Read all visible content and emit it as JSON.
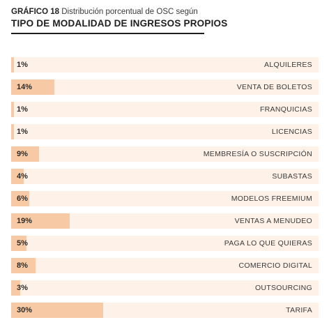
{
  "header": {
    "tag": "GRÁFICO 18",
    "subtitle": "Distribución porcentual de OSC según",
    "title": "TIPO DE MODALIDAD DE INGRESOS PROPIOS"
  },
  "colors": {
    "bar_fill": "#f7c9a4",
    "bar_track": "#fdf1e8",
    "rule": "#1e1e1e"
  },
  "chart_data": {
    "type": "bar",
    "orientation": "horizontal",
    "title": "TIPO DE MODALIDAD DE INGRESOS PROPIOS",
    "subtitle": "GRÁFICO 18 Distribución porcentual de OSC según",
    "xlim": [
      0,
      100
    ],
    "grid": false,
    "legend": "none",
    "categories": [
      "ALQUILERES",
      "VENTA DE BOLETOS",
      "FRANQUICIAS",
      "LICENCIAS",
      "MEMBRESÍA O SUSCRIPCIÓN",
      "SUBASTAS",
      "MODELOS FREEMIUM",
      "VENTAS A MENUDEO",
      "PAGA LO QUE QUIERAS",
      "COMERCIO DIGITAL",
      "OUTSOURCING",
      "TARIFA"
    ],
    "values": [
      1,
      14,
      1,
      1,
      9,
      4,
      6,
      19,
      5,
      8,
      3,
      30
    ],
    "value_labels": [
      "1%",
      "14%",
      "1%",
      "1%",
      "9%",
      "4%",
      "6%",
      "19%",
      "5%",
      "8%",
      "3%",
      "30%"
    ]
  }
}
